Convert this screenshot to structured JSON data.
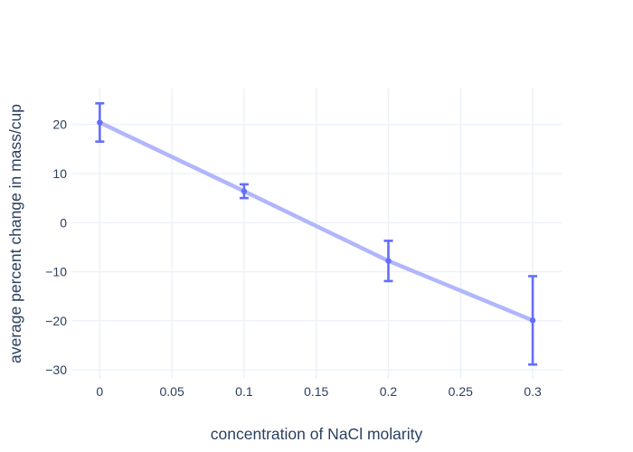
{
  "figure": {
    "background": "#ffffff"
  },
  "chart_data": {
    "type": "line",
    "mode": "lines+markers+error_bars",
    "title": "",
    "xlabel": "concentration of NaCl molarity",
    "ylabel": "average percent change in mass/cup",
    "x": [
      0,
      0.1,
      0.2,
      0.3
    ],
    "y": [
      20.4,
      6.4,
      -7.8,
      -19.9
    ],
    "error_y": [
      3.9,
      1.4,
      4.1,
      9.0
    ],
    "xlim": [
      -0.019,
      0.32
    ],
    "ylim": [
      -31.8,
      27.3
    ],
    "x_ticks": {
      "values": [
        0,
        0.05,
        0.1,
        0.15,
        0.2,
        0.25,
        0.3
      ],
      "labels": [
        "0",
        "0.05",
        "0.1",
        "0.15",
        "0.2",
        "0.25",
        "0.3"
      ]
    },
    "y_ticks": {
      "values": [
        -30,
        -20,
        -10,
        0,
        10,
        20
      ],
      "labels": [
        "−30",
        "−20",
        "−10",
        "0",
        "10",
        "20"
      ]
    },
    "grid": true,
    "legend": false,
    "colors": {
      "line": "#b1b6fc",
      "marker": "#636efa",
      "error_bar": "#636efa",
      "grid": "#ebf0f8",
      "text": "#2a3f5f",
      "background": "#ffffff"
    }
  }
}
